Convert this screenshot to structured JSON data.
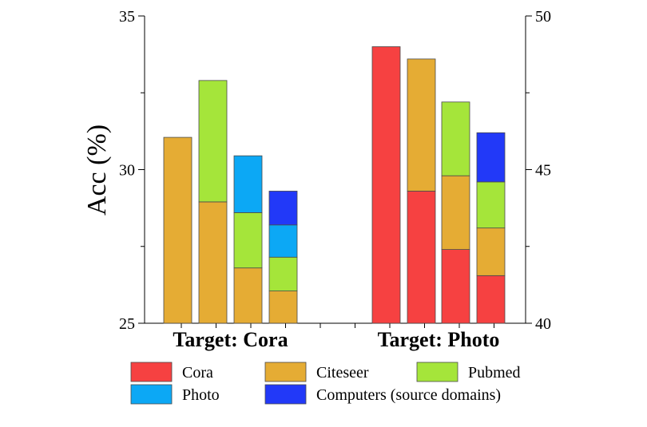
{
  "chart_data": {
    "type": "bar",
    "stacked": true,
    "ylabel": "Acc (%)",
    "left_axis": {
      "ylim": [
        25,
        35
      ],
      "ticks": [
        25,
        30,
        35
      ]
    },
    "right_axis": {
      "ylim": [
        40,
        50
      ],
      "ticks": [
        40,
        45,
        50
      ]
    },
    "groups": [
      {
        "label": "Target: Cora",
        "axis": "left",
        "bars": [
          {
            "segments": [
              {
                "source": "Citeseer",
                "value": 31.05
              }
            ]
          },
          {
            "segments": [
              {
                "source": "Citeseer",
                "value": 28.95
              },
              {
                "source": "Pubmed",
                "value": 32.9
              }
            ]
          },
          {
            "segments": [
              {
                "source": "Citeseer",
                "value": 26.8
              },
              {
                "source": "Pubmed",
                "value": 28.6
              },
              {
                "source": "Photo",
                "value": 30.45
              }
            ]
          },
          {
            "segments": [
              {
                "source": "Citeseer",
                "value": 26.05
              },
              {
                "source": "Pubmed",
                "value": 27.15
              },
              {
                "source": "Photo",
                "value": 28.2
              },
              {
                "source": "Computers",
                "value": 29.3
              }
            ]
          }
        ]
      },
      {
        "label": "Target: Photo",
        "axis": "right",
        "bars": [
          {
            "segments": [
              {
                "source": "Cora",
                "value": 49.0
              }
            ]
          },
          {
            "segments": [
              {
                "source": "Cora",
                "value": 44.3
              },
              {
                "source": "Citeseer",
                "value": 48.6
              }
            ]
          },
          {
            "segments": [
              {
                "source": "Cora",
                "value": 42.4
              },
              {
                "source": "Citeseer",
                "value": 44.8
              },
              {
                "source": "Pubmed",
                "value": 47.2
              }
            ]
          },
          {
            "segments": [
              {
                "source": "Cora",
                "value": 41.55
              },
              {
                "source": "Citeseer",
                "value": 43.1
              },
              {
                "source": "Pubmed",
                "value": 44.6
              },
              {
                "source": "Computers",
                "value": 46.2
              }
            ]
          }
        ]
      }
    ],
    "legend": {
      "placement": "bottom",
      "items": [
        {
          "label": "Cora",
          "source": "Cora",
          "color": "#f64141"
        },
        {
          "label": "Citeseer",
          "source": "Citeseer",
          "color": "#e5ac34"
        },
        {
          "label": "Pubmed",
          "source": "Pubmed",
          "color": "#a5e53a"
        },
        {
          "label": "Photo",
          "source": "Photo",
          "color": "#0ca8f5"
        },
        {
          "label": "Computers (source domains)",
          "source": "Computers",
          "color": "#2239f8"
        }
      ]
    }
  }
}
